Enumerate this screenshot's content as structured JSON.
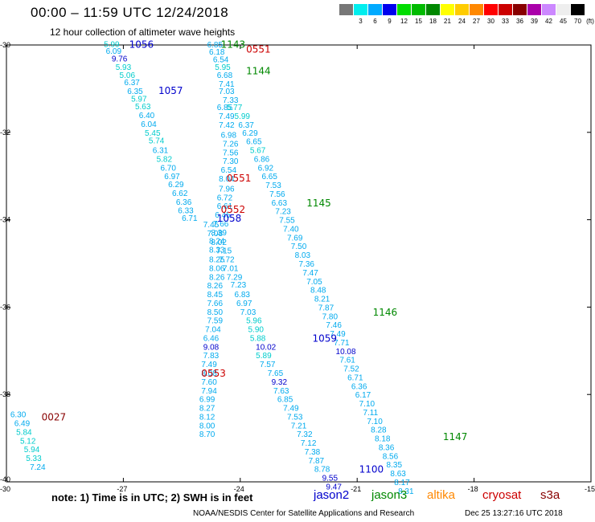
{
  "title": "00:00 – 11:59 UTC 12/24/2018",
  "subtitle": "12 hour collection of altimeter wave heights",
  "legend": {
    "unit": "(ft)",
    "items": [
      {
        "label": "",
        "color": "#777777"
      },
      {
        "label": "3",
        "color": "#00eeee"
      },
      {
        "label": "6",
        "color": "#00aaff"
      },
      {
        "label": "9",
        "color": "#0000ee"
      },
      {
        "label": "12",
        "color": "#00dd00"
      },
      {
        "label": "15",
        "color": "#00bb00"
      },
      {
        "label": "18",
        "color": "#008800"
      },
      {
        "label": "21",
        "color": "#ffff00"
      },
      {
        "label": "24",
        "color": "#ffcc00"
      },
      {
        "label": "27",
        "color": "#ff8800"
      },
      {
        "label": "30",
        "color": "#ff0000"
      },
      {
        "label": "33",
        "color": "#cc0000"
      },
      {
        "label": "36",
        "color": "#880000"
      },
      {
        "label": "39",
        "color": "#aa00aa"
      },
      {
        "label": "42",
        "color": "#cc88ff"
      },
      {
        "label": "45",
        "color": "#eeeeee"
      },
      {
        "label": "70",
        "color": "#000000"
      }
    ]
  },
  "axes": {
    "x_ticks": [
      "-30",
      "-27",
      "-24",
      "-21",
      "-18",
      "-15"
    ],
    "y_ticks": [
      "-30",
      "-32",
      "-34",
      "-36",
      "-38",
      "-40"
    ]
  },
  "note": "note:  1) Time is in UTC;  2) SWH is in feet",
  "satellites": [
    {
      "name": "jason2",
      "color": "#0000cc"
    },
    {
      "name": "jason3",
      "color": "#008800"
    },
    {
      "name": "altika",
      "color": "#ff8800"
    },
    {
      "name": "cryosat",
      "color": "#cc0000"
    },
    {
      "name": "s3a",
      "color": "#880000"
    }
  ],
  "footer": "NOAA/NESDIS Center for Satellite Applications and Research",
  "timestamp": "Dec 25 13:27:16 UTC 2018",
  "pass_labels": [
    {
      "text": "1056",
      "sat": "jason2",
      "lon": -26.85,
      "lat": -29.97
    },
    {
      "text": "1057",
      "sat": "jason2",
      "lon": -26.1,
      "lat": -31.03
    },
    {
      "text": "1058",
      "sat": "jason2",
      "lon": -24.6,
      "lat": -33.95
    },
    {
      "text": "1059",
      "sat": "jason2",
      "lon": -22.15,
      "lat": -36.7
    },
    {
      "text": "1100",
      "sat": "jason2",
      "lon": -20.95,
      "lat": -39.7
    },
    {
      "text": "1143",
      "sat": "jason3",
      "lon": -24.5,
      "lat": -29.97
    },
    {
      "text": "1144",
      "sat": "jason3",
      "lon": -23.85,
      "lat": -30.58
    },
    {
      "text": "1145",
      "sat": "jason3",
      "lon": -22.3,
      "lat": -33.6
    },
    {
      "text": "1146",
      "sat": "jason3",
      "lon": -20.6,
      "lat": -36.1
    },
    {
      "text": "1147",
      "sat": "jason3",
      "lon": -18.8,
      "lat": -38.95
    },
    {
      "text": "0551",
      "sat": "cryosat",
      "lon": -23.85,
      "lat": -30.08
    },
    {
      "text": "0551",
      "sat": "cryosat",
      "lon": -24.35,
      "lat": -33.03
    },
    {
      "text": "0552",
      "sat": "cryosat",
      "lon": -24.5,
      "lat": -33.75
    },
    {
      "text": "0553",
      "sat": "cryosat",
      "lon": -25.0,
      "lat": -37.5
    },
    {
      "text": "0027",
      "sat": "s3a",
      "lon": -29.1,
      "lat": -38.5
    }
  ],
  "tracks": [
    {
      "sat": "jason2",
      "points": [
        {
          "lon": -27.5,
          "lat": -29.97,
          "swh": "5.99"
        },
        {
          "lon": -27.45,
          "lat": -30.13,
          "swh": "6.09"
        },
        {
          "lon": -27.3,
          "lat": -30.3,
          "swh": "9.76"
        },
        {
          "lon": -27.2,
          "lat": -30.5,
          "swh": "5.93"
        },
        {
          "lon": -27.1,
          "lat": -30.68,
          "swh": "5.06"
        },
        {
          "lon": -26.98,
          "lat": -30.85,
          "swh": "6.37"
        },
        {
          "lon": -26.9,
          "lat": -31.05,
          "swh": "6.35"
        },
        {
          "lon": -26.8,
          "lat": -31.22,
          "swh": "5.97"
        },
        {
          "lon": -26.7,
          "lat": -31.4,
          "swh": "5.63"
        },
        {
          "lon": -26.6,
          "lat": -31.6,
          "swh": "6.40"
        },
        {
          "lon": -26.55,
          "lat": -31.8,
          "swh": "6.04"
        },
        {
          "lon": -26.45,
          "lat": -32.0,
          "swh": "5.45"
        },
        {
          "lon": -26.35,
          "lat": -32.18,
          "swh": "5.74"
        },
        {
          "lon": -26.25,
          "lat": -32.4,
          "swh": "6.31"
        },
        {
          "lon": -26.15,
          "lat": -32.6,
          "swh": "5.82"
        },
        {
          "lon": -26.05,
          "lat": -32.8,
          "swh": "6.70"
        },
        {
          "lon": -25.95,
          "lat": -33.0,
          "swh": "6.97"
        },
        {
          "lon": -25.85,
          "lat": -33.18,
          "swh": "6.29"
        },
        {
          "lon": -25.75,
          "lat": -33.38,
          "swh": "6.62"
        },
        {
          "lon": -25.65,
          "lat": -33.58,
          "swh": "6.36"
        },
        {
          "lon": -25.6,
          "lat": -33.78,
          "swh": "6.33"
        },
        {
          "lon": -25.5,
          "lat": -33.95,
          "swh": "6.71"
        },
        {
          "lon": -24.95,
          "lat": -34.1,
          "swh": "7.45"
        },
        {
          "lon": -24.85,
          "lat": -34.3,
          "swh": "7.08"
        },
        {
          "lon": -24.75,
          "lat": -34.5,
          "swh": "8.02"
        },
        {
          "lon": -24.62,
          "lat": -34.7,
          "swh": "7.15"
        },
        {
          "lon": -24.55,
          "lat": -34.9,
          "swh": "7.72"
        },
        {
          "lon": -24.45,
          "lat": -35.1,
          "swh": "7.01"
        },
        {
          "lon": -24.35,
          "lat": -35.3,
          "swh": "7.29"
        },
        {
          "lon": -24.25,
          "lat": -35.48,
          "swh": "7.23"
        },
        {
          "lon": -24.15,
          "lat": -35.7,
          "swh": "6.83"
        },
        {
          "lon": -24.1,
          "lat": -35.9,
          "swh": "6.97"
        },
        {
          "lon": -24.0,
          "lat": -36.1,
          "swh": "7.03"
        },
        {
          "lon": -23.85,
          "lat": -36.3,
          "swh": "5.96"
        },
        {
          "lon": -23.8,
          "lat": -36.5,
          "swh": "5.90"
        },
        {
          "lon": -23.75,
          "lat": -36.7,
          "swh": "5.88"
        },
        {
          "lon": -23.6,
          "lat": -36.9,
          "swh": "10.02"
        },
        {
          "lon": -23.6,
          "lat": -37.1,
          "swh": "5.89"
        },
        {
          "lon": -23.5,
          "lat": -37.3,
          "swh": "7.57"
        },
        {
          "lon": -23.3,
          "lat": -37.5,
          "swh": "7.65"
        },
        {
          "lon": -23.2,
          "lat": -37.7,
          "swh": "9.32"
        },
        {
          "lon": -23.15,
          "lat": -37.9,
          "swh": "7.63"
        },
        {
          "lon": -23.05,
          "lat": -38.1,
          "swh": "6.85"
        },
        {
          "lon": -22.9,
          "lat": -38.3,
          "swh": "7.49"
        },
        {
          "lon": -22.8,
          "lat": -38.5,
          "swh": "7.53"
        },
        {
          "lon": -22.7,
          "lat": -38.7,
          "swh": "7.21"
        },
        {
          "lon": -22.55,
          "lat": -38.9,
          "swh": "7.32"
        },
        {
          "lon": -22.45,
          "lat": -39.1,
          "swh": "7.12"
        },
        {
          "lon": -22.35,
          "lat": -39.3,
          "swh": "7.38"
        },
        {
          "lon": -22.25,
          "lat": -39.5,
          "swh": "7.87"
        },
        {
          "lon": -22.1,
          "lat": -39.7,
          "swh": "8.78"
        },
        {
          "lon": -21.9,
          "lat": -39.9,
          "swh": "9.55"
        },
        {
          "lon": -21.8,
          "lat": -40.1,
          "swh": "9.47"
        }
      ]
    },
    {
      "sat": "jason3",
      "points": [
        {
          "lon": -24.85,
          "lat": -29.98,
          "swh": "6.85"
        },
        {
          "lon": -24.8,
          "lat": -30.15,
          "swh": "6.18"
        },
        {
          "lon": -24.7,
          "lat": -30.32,
          "swh": "6.54"
        },
        {
          "lon": -24.65,
          "lat": -30.5,
          "swh": "5.95"
        },
        {
          "lon": -24.6,
          "lat": -30.68,
          "swh": "6.68"
        },
        {
          "lon": -24.55,
          "lat": -30.88,
          "swh": "7.41"
        },
        {
          "lon": -24.55,
          "lat": -31.05,
          "swh": "7.03"
        },
        {
          "lon": -24.45,
          "lat": -31.25,
          "swh": "7.33"
        },
        {
          "lon": -24.6,
          "lat": -31.42,
          "swh": "6.85"
        },
        {
          "lon": -24.35,
          "lat": -31.42,
          "swh": "5.77"
        },
        {
          "lon": -24.55,
          "lat": -31.62,
          "swh": "7.49"
        },
        {
          "lon": -24.15,
          "lat": -31.62,
          "swh": "5.99"
        },
        {
          "lon": -24.55,
          "lat": -31.82,
          "swh": "7.42"
        },
        {
          "lon": -24.05,
          "lat": -31.82,
          "swh": "6.37"
        },
        {
          "lon": -24.5,
          "lat": -32.05,
          "swh": "6.98"
        },
        {
          "lon": -23.95,
          "lat": -32.0,
          "swh": "6.29"
        },
        {
          "lon": -24.45,
          "lat": -32.25,
          "swh": "7.26"
        },
        {
          "lon": -23.85,
          "lat": -32.2,
          "swh": "6.65"
        },
        {
          "lon": -24.45,
          "lat": -32.45,
          "swh": "7.56"
        },
        {
          "lon": -23.75,
          "lat": -32.4,
          "swh": "5.67"
        },
        {
          "lon": -24.45,
          "lat": -32.65,
          "swh": "7.30"
        },
        {
          "lon": -23.65,
          "lat": -32.6,
          "swh": "6.86"
        },
        {
          "lon": -24.5,
          "lat": -32.85,
          "swh": "6.54"
        },
        {
          "lon": -23.55,
          "lat": -32.8,
          "swh": "6.92"
        },
        {
          "lon": -24.55,
          "lat": -33.05,
          "swh": "8.04"
        },
        {
          "lon": -23.45,
          "lat": -33.0,
          "swh": "6.65"
        },
        {
          "lon": -24.55,
          "lat": -33.28,
          "swh": "7.96"
        },
        {
          "lon": -23.35,
          "lat": -33.2,
          "swh": "7.53"
        },
        {
          "lon": -24.6,
          "lat": -33.48,
          "swh": "6.72"
        },
        {
          "lon": -23.25,
          "lat": -33.4,
          "swh": "7.56"
        },
        {
          "lon": -24.6,
          "lat": -33.68,
          "swh": "6.61"
        },
        {
          "lon": -23.2,
          "lat": -33.6,
          "swh": "6.63"
        },
        {
          "lon": -24.65,
          "lat": -33.88,
          "swh": "6.45"
        },
        {
          "lon": -23.1,
          "lat": -33.8,
          "swh": "7.23"
        },
        {
          "lon": -24.7,
          "lat": -34.08,
          "swh": "7.66"
        },
        {
          "lon": -23.0,
          "lat": -34.0,
          "swh": "7.55"
        },
        {
          "lon": -24.75,
          "lat": -34.28,
          "swh": "8.39"
        },
        {
          "lon": -22.9,
          "lat": -34.2,
          "swh": "7.40"
        },
        {
          "lon": -24.8,
          "lat": -34.48,
          "swh": "8.24"
        },
        {
          "lon": -22.8,
          "lat": -34.4,
          "swh": "7.69"
        },
        {
          "lon": -24.8,
          "lat": -34.68,
          "swh": "8.33"
        },
        {
          "lon": -22.7,
          "lat": -34.6,
          "swh": "7.50"
        },
        {
          "lon": -24.8,
          "lat": -34.9,
          "swh": "8.25"
        },
        {
          "lon": -22.6,
          "lat": -34.8,
          "swh": "8.03"
        },
        {
          "lon": -24.8,
          "lat": -35.1,
          "swh": "8.06"
        },
        {
          "lon": -22.5,
          "lat": -35.0,
          "swh": "7.36"
        },
        {
          "lon": -24.8,
          "lat": -35.3,
          "swh": "8.26"
        },
        {
          "lon": -22.4,
          "lat": -35.2,
          "swh": "7.47"
        },
        {
          "lon": -24.85,
          "lat": -35.5,
          "swh": "8.26"
        },
        {
          "lon": -22.3,
          "lat": -35.4,
          "swh": "7.05"
        },
        {
          "lon": -24.85,
          "lat": -35.7,
          "swh": "8.45"
        },
        {
          "lon": -22.2,
          "lat": -35.6,
          "swh": "8.48"
        },
        {
          "lon": -24.85,
          "lat": -35.9,
          "swh": "7.66"
        },
        {
          "lon": -22.1,
          "lat": -35.8,
          "swh": "8.21"
        },
        {
          "lon": -24.85,
          "lat": -36.1,
          "swh": "8.50"
        },
        {
          "lon": -22.0,
          "lat": -36.0,
          "swh": "7.87"
        },
        {
          "lon": -24.85,
          "lat": -36.3,
          "swh": "7.59"
        },
        {
          "lon": -21.9,
          "lat": -36.2,
          "swh": "7.80"
        },
        {
          "lon": -24.9,
          "lat": -36.5,
          "swh": "7.04"
        },
        {
          "lon": -21.8,
          "lat": -36.4,
          "swh": "7.46"
        },
        {
          "lon": -24.95,
          "lat": -36.7,
          "swh": "6.46"
        },
        {
          "lon": -21.7,
          "lat": -36.6,
          "swh": "7.49"
        },
        {
          "lon": -24.95,
          "lat": -36.9,
          "swh": "9.08"
        },
        {
          "lon": -21.6,
          "lat": -36.8,
          "swh": "7.71"
        },
        {
          "lon": -24.95,
          "lat": -37.1,
          "swh": "7.83"
        },
        {
          "lon": -21.55,
          "lat": -37.0,
          "swh": "10.08"
        },
        {
          "lon": -25.0,
          "lat": -37.3,
          "swh": "7.49"
        },
        {
          "lon": -21.45,
          "lat": -37.2,
          "swh": "7.61"
        },
        {
          "lon": -25.0,
          "lat": -37.5,
          "swh": "8.08"
        },
        {
          "lon": -21.35,
          "lat": -37.4,
          "swh": "7.52"
        },
        {
          "lon": -25.0,
          "lat": -37.7,
          "swh": "7.60"
        },
        {
          "lon": -21.25,
          "lat": -37.6,
          "swh": "6.71"
        },
        {
          "lon": -25.0,
          "lat": -37.9,
          "swh": "7.94"
        },
        {
          "lon": -21.15,
          "lat": -37.8,
          "swh": "6.36"
        },
        {
          "lon": -25.05,
          "lat": -38.1,
          "swh": "6.99"
        },
        {
          "lon": -21.05,
          "lat": -38.0,
          "swh": "6.17"
        },
        {
          "lon": -25.05,
          "lat": -38.3,
          "swh": "8.27"
        },
        {
          "lon": -20.95,
          "lat": -38.2,
          "swh": "7.10"
        },
        {
          "lon": -25.05,
          "lat": -38.5,
          "swh": "8.12"
        },
        {
          "lon": -20.85,
          "lat": -38.4,
          "swh": "7.11"
        },
        {
          "lon": -25.05,
          "lat": -38.7,
          "swh": "8.00"
        },
        {
          "lon": -20.75,
          "lat": -38.6,
          "swh": "7.10"
        },
        {
          "lon": -25.05,
          "lat": -38.9,
          "swh": "8.70"
        },
        {
          "lon": -20.65,
          "lat": -38.8,
          "swh": "8.28"
        },
        {
          "lon": -20.55,
          "lat": -39.0,
          "swh": "8.18"
        },
        {
          "lon": -20.45,
          "lat": -39.2,
          "swh": "8.36"
        },
        {
          "lon": -20.35,
          "lat": -39.4,
          "swh": "8.56"
        },
        {
          "lon": -20.25,
          "lat": -39.6,
          "swh": "8.35"
        },
        {
          "lon": -20.15,
          "lat": -39.8,
          "swh": "8.63"
        },
        {
          "lon": -20.05,
          "lat": -40.0,
          "swh": "8.17"
        },
        {
          "lon": -19.95,
          "lat": -40.2,
          "swh": "8.31"
        }
      ]
    },
    {
      "sat": "s3a",
      "points": [
        {
          "lon": -29.9,
          "lat": -38.45,
          "swh": "6.30"
        },
        {
          "lon": -29.8,
          "lat": -38.65,
          "swh": "6.49"
        },
        {
          "lon": -29.75,
          "lat": -38.85,
          "swh": "5.84"
        },
        {
          "lon": -29.65,
          "lat": -39.05,
          "swh": "5.12"
        },
        {
          "lon": -29.55,
          "lat": -39.25,
          "swh": "5.94"
        },
        {
          "lon": -29.5,
          "lat": -39.45,
          "swh": "5.33"
        },
        {
          "lon": -29.4,
          "lat": -39.65,
          "swh": "7.24"
        }
      ]
    }
  ]
}
